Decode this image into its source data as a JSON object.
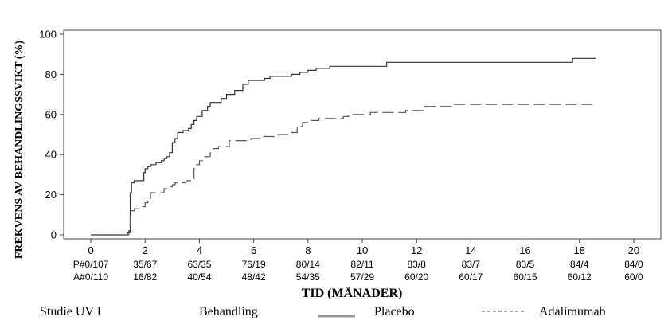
{
  "chart_data": {
    "type": "line",
    "title": "",
    "xlabel": "TID (MÅNADER)",
    "ylabel": "FREKVENS AV BEHANDLINGSSVIKT (%)",
    "xlim": [
      -1,
      21
    ],
    "ylim": [
      -2,
      102
    ],
    "x_ticks": [
      "0",
      "2",
      "4",
      "6",
      "8",
      "10",
      "12",
      "14",
      "16",
      "18",
      "20"
    ],
    "y_ticks": [
      "0",
      "20",
      "40",
      "60",
      "80",
      "100"
    ],
    "grid": false,
    "series": [
      {
        "name": "Placebo",
        "style": "solid",
        "color": "#333333",
        "points": [
          [
            0,
            0
          ],
          [
            1.3,
            0
          ],
          [
            1.35,
            1
          ],
          [
            1.4,
            2
          ],
          [
            1.45,
            21
          ],
          [
            1.5,
            26
          ],
          [
            1.6,
            27
          ],
          [
            1.9,
            27
          ],
          [
            1.95,
            31
          ],
          [
            2.0,
            33
          ],
          [
            2.1,
            34
          ],
          [
            2.2,
            35
          ],
          [
            2.4,
            36
          ],
          [
            2.6,
            37
          ],
          [
            2.7,
            38
          ],
          [
            2.8,
            39
          ],
          [
            2.9,
            41
          ],
          [
            3.0,
            46
          ],
          [
            3.1,
            48
          ],
          [
            3.2,
            51
          ],
          [
            3.4,
            52
          ],
          [
            3.6,
            53
          ],
          [
            3.7,
            55
          ],
          [
            3.8,
            57
          ],
          [
            3.9,
            59
          ],
          [
            4.1,
            62
          ],
          [
            4.3,
            64
          ],
          [
            4.4,
            66
          ],
          [
            4.8,
            68
          ],
          [
            5.0,
            70
          ],
          [
            5.3,
            72
          ],
          [
            5.6,
            75
          ],
          [
            5.8,
            77
          ],
          [
            6.4,
            78
          ],
          [
            6.6,
            79
          ],
          [
            7.4,
            80
          ],
          [
            7.7,
            81
          ],
          [
            8.0,
            82
          ],
          [
            8.3,
            83
          ],
          [
            8.8,
            84
          ],
          [
            9.6,
            84
          ],
          [
            10.9,
            86
          ],
          [
            17.7,
            86
          ],
          [
            17.75,
            88
          ],
          [
            18.6,
            88
          ]
        ]
      },
      {
        "name": "Adalimumab",
        "style": "dashed",
        "color": "#555555",
        "points": [
          [
            0,
            0
          ],
          [
            1.3,
            0
          ],
          [
            1.4,
            1
          ],
          [
            1.45,
            12
          ],
          [
            1.6,
            13
          ],
          [
            1.8,
            14
          ],
          [
            2.0,
            16
          ],
          [
            2.1,
            17
          ],
          [
            2.2,
            21
          ],
          [
            2.6,
            21
          ],
          [
            2.7,
            23
          ],
          [
            2.9,
            24
          ],
          [
            3.0,
            25
          ],
          [
            3.1,
            26
          ],
          [
            3.5,
            27
          ],
          [
            3.7,
            28
          ],
          [
            3.8,
            33
          ],
          [
            3.9,
            35
          ],
          [
            4.0,
            37
          ],
          [
            4.2,
            39
          ],
          [
            4.4,
            41
          ],
          [
            4.5,
            43
          ],
          [
            4.7,
            44
          ],
          [
            5.1,
            47
          ],
          [
            5.9,
            48
          ],
          [
            6.3,
            49
          ],
          [
            6.9,
            50
          ],
          [
            7.4,
            51
          ],
          [
            7.6,
            54
          ],
          [
            7.8,
            56
          ],
          [
            8.1,
            57
          ],
          [
            8.4,
            58
          ],
          [
            9.3,
            59
          ],
          [
            9.5,
            60
          ],
          [
            10.3,
            61
          ],
          [
            11.6,
            62
          ],
          [
            12.3,
            64
          ],
          [
            13.3,
            65
          ],
          [
            18.6,
            65
          ]
        ]
      }
    ],
    "risk_table": {
      "rows": [
        {
          "label": "P#",
          "values": [
            "0/107",
            "35/67",
            "63/35",
            "76/19",
            "80/14",
            "82/11",
            "83/8",
            "83/7",
            "83/5",
            "84/4",
            "84/0"
          ]
        },
        {
          "label": "A#",
          "values": [
            "0/110",
            "16/82",
            "40/54",
            "48/42",
            "54/35",
            "57/29",
            "60/20",
            "60/17",
            "60/15",
            "60/12",
            "60/0"
          ]
        }
      ]
    }
  },
  "legend": {
    "study": "Studie UV I",
    "treatment_label": "Behandling",
    "placebo": "Placebo",
    "adalimumab": "Adalimumab"
  }
}
